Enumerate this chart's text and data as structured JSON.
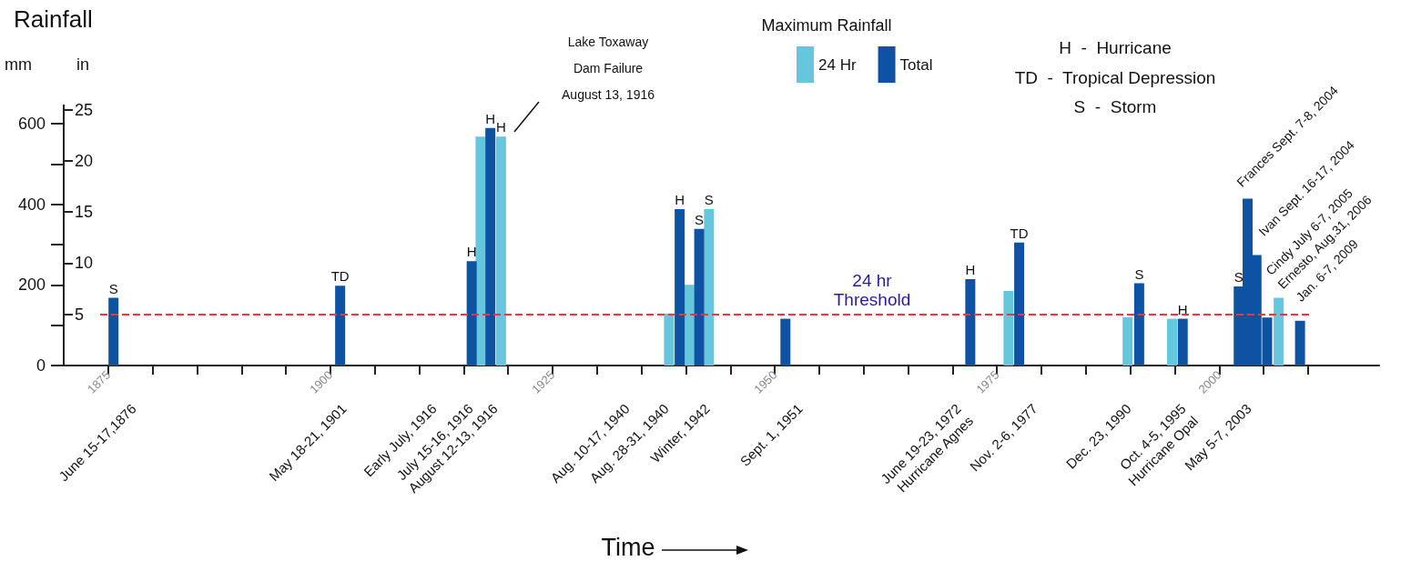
{
  "chart_data": {
    "type": "bar",
    "title": "Rainfall",
    "ylabel": "mm",
    "y2label": "in",
    "legend_title": "Maximum Rainfall",
    "legend": "top",
    "xlim": [
      1870,
      2018
    ],
    "xticks": [
      1875,
      {
        "value": 1880,
        "label": null
      },
      {
        "value": 1885,
        "label": null
      },
      {
        "value": 1890,
        "label": null
      },
      {
        "value": 1895,
        "label": null
      },
      1900,
      {
        "value": 1905,
        "label": null
      },
      {
        "value": 1910,
        "label": null
      },
      {
        "value": 1915,
        "label": null
      },
      {
        "value": 1920,
        "label": null
      },
      1925,
      {
        "value": 1930,
        "label": null
      },
      {
        "value": 1935,
        "label": null
      },
      {
        "value": 1940,
        "label": null
      },
      {
        "value": 1945,
        "label": null
      },
      1950,
      {
        "value": 1955,
        "label": null
      },
      {
        "value": 1960,
        "label": null
      },
      {
        "value": 1965,
        "label": null
      },
      {
        "value": 1970,
        "label": null
      },
      1975,
      {
        "value": 1980,
        "label": null
      },
      {
        "value": 1985,
        "label": null
      },
      {
        "value": 1990,
        "label": null
      },
      {
        "value": 1995,
        "label": null
      },
      2000,
      {
        "value": 2005,
        "label": null
      },
      {
        "value": 2010,
        "label": null
      }
    ],
    "ylim": [
      0,
      645
    ],
    "yticks": [
      0,
      {
        "value": 100,
        "label": null
      },
      200,
      {
        "value": 300,
        "label": null
      },
      400,
      {
        "value": 500,
        "label": null
      },
      600
    ],
    "y2lim": [
      0,
      25.4
    ],
    "y2ticks": [
      5,
      10,
      15,
      20,
      25
    ],
    "series": [
      {
        "name": "24 Hr",
        "color": "#66c6dd",
        "x": [
          1916.9,
          1919.2,
          1938.1,
          1940.4,
          1942.6,
          1976.3,
          1989.7,
          1994.7,
          2006.7
        ],
        "values": [
          568,
          568,
          129,
          200,
          388,
          185,
          120,
          116,
          168
        ],
        "value_labels": [
          null,
          "H",
          null,
          null,
          "S",
          null,
          null,
          null,
          null
        ]
      },
      {
        "name": "Total",
        "color": "#0d52a3",
        "x": [
          1875.6,
          1901.1,
          1915.9,
          1918.0,
          1939.3,
          1941.5,
          1951.2,
          1972.0,
          1977.5,
          1991.0,
          1995.9,
          2002.2,
          2003.2,
          2004.2,
          2005.4,
          2009.1
        ],
        "values": [
          168,
          198,
          259,
          589,
          388,
          339,
          116,
          214,
          305,
          204,
          116,
          196,
          414,
          274,
          119,
          111
        ],
        "value_labels": [
          "S",
          "TD",
          "H",
          "H",
          "H",
          "S",
          null,
          "H",
          "TD",
          "S",
          "H",
          "S",
          null,
          null,
          null,
          null
        ]
      }
    ],
    "ref_lines": [
      {
        "axis": "y2",
        "value": 5,
        "label": "24 hr\nThreshold",
        "color": "#ff3333",
        "line_style": "dashed"
      }
    ],
    "annotations": [
      "H  -  Hurricane",
      "TD  -  Tropical Depression",
      "S  -  Storm",
      "Lake Toxaway\nDam Failure\nAugust 13, 1916",
      "Frances Sept. 7-8, 2004",
      "Ivan Sept. 16-17, 2004",
      "Cindy July 6-7, 2005",
      "Ernesto, Aug.31, 2006",
      "Jan. 6-7, 2009",
      "June 15-17,1876",
      "May 18-21, 1901",
      "Early July, 1916",
      "July 15-16, 1916",
      "August 12-13, 1916",
      "Aug. 10-17, 1940",
      "Aug. 28-31, 1940",
      "Winter, 1942",
      "Sept. 1, 1951",
      "June 19-23, 1972\nHurricane Agnes",
      "Nov. 2-6, 1977",
      "Dec. 23, 1990",
      "Oct. 4-5, 1995\nHurricane Opal",
      "May 5-7, 2003",
      "Time"
    ]
  }
}
